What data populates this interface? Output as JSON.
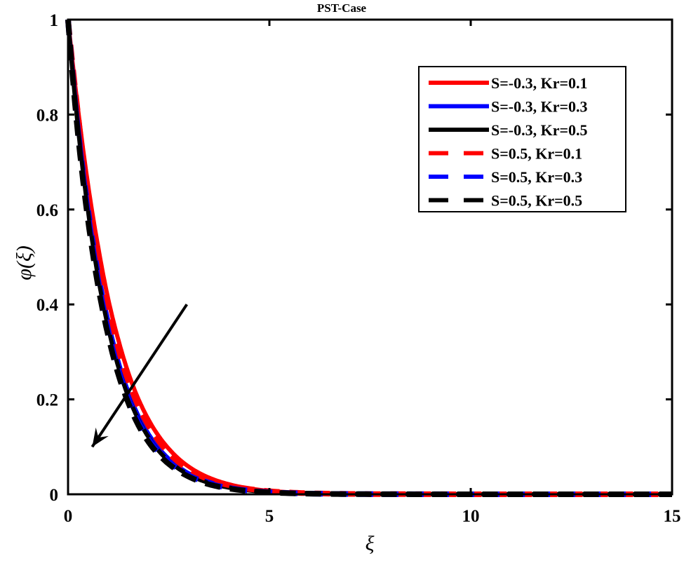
{
  "chart_data": {
    "type": "line",
    "title": "PST-Case",
    "xlabel": "ξ",
    "ylabel": "φ(ξ)",
    "xlim": [
      0,
      15
    ],
    "ylim": [
      0,
      1
    ],
    "xticks": [
      0,
      5,
      10,
      15
    ],
    "yticks": [
      0,
      0.2,
      0.4,
      0.6,
      0.8,
      1
    ],
    "ytick_labels": [
      "0",
      "0.2",
      "0.4",
      "0.6",
      "0.8",
      "1"
    ],
    "grid": false,
    "legend_position": "upper right",
    "x": [
      0,
      0.25,
      0.5,
      0.75,
      1,
      1.25,
      1.5,
      1.75,
      2,
      2.5,
      3,
      3.5,
      4,
      5,
      6,
      7,
      8,
      10,
      12,
      15
    ],
    "series": [
      {
        "name": "S=-0.3, Kr=0.1",
        "color": "#ff0000",
        "style": "solid",
        "values": [
          1,
          0.81,
          0.65,
          0.52,
          0.41,
          0.325,
          0.255,
          0.2,
          0.157,
          0.096,
          0.058,
          0.035,
          0.021,
          0.007,
          0.0025,
          0.001,
          0.0003,
          0,
          0,
          0
        ]
      },
      {
        "name": "S=-0.3, Kr=0.3",
        "color": "#0000ff",
        "style": "solid",
        "values": [
          1,
          0.78,
          0.61,
          0.47,
          0.365,
          0.28,
          0.215,
          0.165,
          0.127,
          0.075,
          0.044,
          0.026,
          0.015,
          0.005,
          0.0017,
          0.0006,
          0.0002,
          0,
          0,
          0
        ]
      },
      {
        "name": "S=-0.3, Kr=0.5",
        "color": "#000000",
        "style": "solid",
        "values": [
          1,
          0.77,
          0.595,
          0.455,
          0.35,
          0.268,
          0.205,
          0.157,
          0.12,
          0.07,
          0.041,
          0.024,
          0.014,
          0.0047,
          0.0016,
          0.0005,
          0.0002,
          0,
          0,
          0
        ]
      },
      {
        "name": "S=0.5, Kr=0.1",
        "color": "#ff0000",
        "style": "dashed",
        "values": [
          1,
          0.8,
          0.63,
          0.5,
          0.39,
          0.305,
          0.238,
          0.185,
          0.144,
          0.087,
          0.052,
          0.031,
          0.019,
          0.0065,
          0.0022,
          0.0008,
          0.0003,
          0,
          0,
          0
        ]
      },
      {
        "name": "S=0.5, Kr=0.3",
        "color": "#0000ff",
        "style": "dashed",
        "values": [
          1,
          0.765,
          0.59,
          0.45,
          0.345,
          0.262,
          0.2,
          0.152,
          0.116,
          0.068,
          0.04,
          0.023,
          0.013,
          0.0045,
          0.0015,
          0.0005,
          0.0002,
          0,
          0,
          0
        ]
      },
      {
        "name": "S=0.5, Kr=0.5",
        "color": "#000000",
        "style": "dashed",
        "values": [
          1,
          0.755,
          0.575,
          0.437,
          0.333,
          0.252,
          0.192,
          0.145,
          0.11,
          0.064,
          0.037,
          0.021,
          0.012,
          0.004,
          0.0013,
          0.0004,
          0.0001,
          0,
          0,
          0
        ]
      }
    ],
    "annotations": [
      {
        "type": "arrow",
        "from": [
          2.95,
          0.4
        ],
        "to": [
          0.6,
          0.1
        ],
        "meaning": "direction of increasing Kr"
      }
    ]
  },
  "legend": {
    "items": [
      {
        "label": "S=-0.3, Kr=0.1",
        "color": "#ff0000",
        "dash": ""
      },
      {
        "label": "S=-0.3, Kr=0.3",
        "color": "#0000ff",
        "dash": ""
      },
      {
        "label": "S=-0.3, Kr=0.5",
        "color": "#000000",
        "dash": ""
      },
      {
        "label": "S=0.5, Kr=0.1",
        "color": "#ff0000",
        "dash": "28,22"
      },
      {
        "label": "S=0.5, Kr=0.3",
        "color": "#0000ff",
        "dash": "28,22"
      },
      {
        "label": "S=0.5, Kr=0.5",
        "color": "#000000",
        "dash": "28,22"
      }
    ]
  }
}
